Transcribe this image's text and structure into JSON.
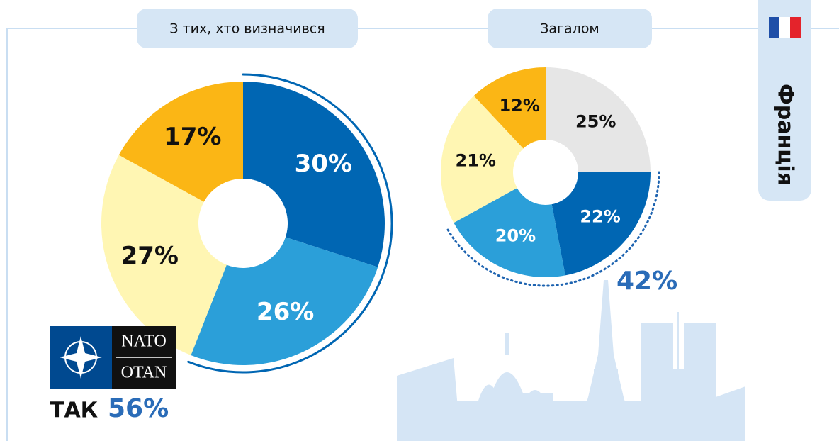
{
  "country": "Франція",
  "logo": {
    "top": "NATO",
    "bottom": "OTAN"
  },
  "chart_data": [
    {
      "type": "pie",
      "title": "З тих, хто визначився",
      "categories": [
        null,
        null,
        null,
        null
      ],
      "values": [
        30,
        26,
        27,
        17
      ],
      "value_labels": [
        "30%",
        "26%",
        "27%",
        "17%"
      ],
      "colors": [
        "#0066b3",
        "#2b9fd9",
        "#fff6b3",
        "#fbb615"
      ],
      "label_colors": [
        "#ffffff",
        "#ffffff",
        "#111111",
        "#111111"
      ],
      "annotation_label": "ТАК",
      "annotation": "56%"
    },
    {
      "type": "pie",
      "title": "Загалом",
      "categories": [
        null,
        null,
        null,
        null,
        null
      ],
      "values": [
        25,
        22,
        20,
        21,
        12
      ],
      "value_labels": [
        "25%",
        "22%",
        "20%",
        "21%",
        "12%"
      ],
      "colors": [
        "#e6e6e6",
        "#0066b3",
        "#2b9fd9",
        "#fff6b3",
        "#fbb615"
      ],
      "label_colors": [
        "#111111",
        "#ffffff",
        "#ffffff",
        "#111111",
        "#111111"
      ],
      "annotation": "42%"
    }
  ]
}
